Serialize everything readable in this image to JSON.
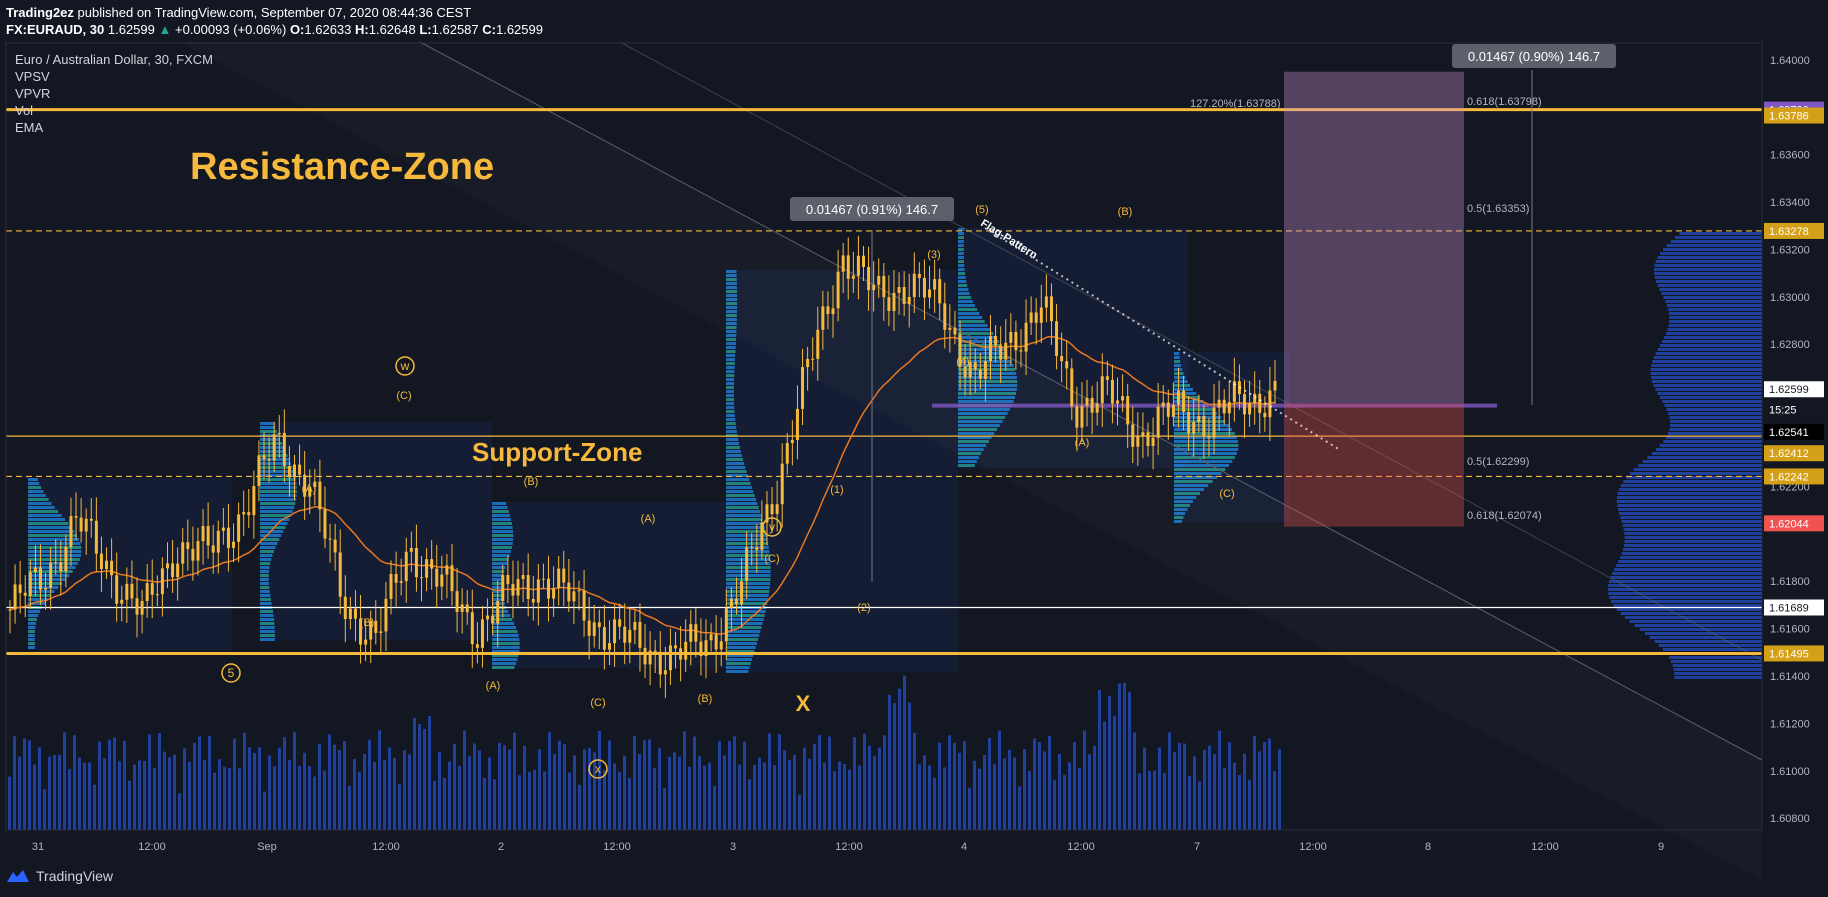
{
  "header": {
    "publisher": "Trading2ez",
    "published_text": "published on TradingView.com, September 07, 2020 08:44:36 CEST",
    "symbol": "FX:EURAUD, 30",
    "last": "1.62599",
    "change": "+0.00093 (+0.06%)",
    "open_label": "O:",
    "open": "1.62633",
    "high_label": "H:",
    "high": "1.62648",
    "low_label": "L:",
    "low": "1.62587",
    "close_label": "C:",
    "close": "1.62599"
  },
  "legend": {
    "title": "Euro / Australian Dollar, 30, FXCM",
    "indicators": [
      "VPSV",
      "VPVR",
      "Vol",
      "EMA"
    ]
  },
  "annotations": {
    "resistance_zone": "Resistance-Zone",
    "support_zone": "Support-Zone",
    "flag_pattern": "Flag-Pattern",
    "measure_left": "0.01467 (0.91%) 146.7",
    "measure_right": "0.01467 (0.90%) 146.7",
    "fib_127": "127.20%(1.63788)",
    "fib_0618_top": "0.618(1.63798)",
    "fib_05_top": "0.5(1.63353)",
    "fib_05_bot": "0.5(1.62299)",
    "fib_0618_bot": "0.618(1.62074)",
    "wave_labels": {
      "w": "w",
      "y": "y",
      "x_circle": "x",
      "x_big": "X",
      "five_circle": "5",
      "A": "(A)",
      "B": "(B)",
      "C": "(C)",
      "w1": "(1)",
      "w2": "(2)",
      "w3": "(3)",
      "w4": "(4)",
      "w5": "(5)"
    },
    "colors": {
      "wave_label": "#f6b93b",
      "zone_line": "#f6b93b",
      "candle": "#f6b93b",
      "ema": "#e87722",
      "volume": "#2962ff"
    }
  },
  "price_axis": {
    "ticks": [
      "1.64000",
      "1.63600",
      "1.63400",
      "1.63200",
      "1.63000",
      "1.62800",
      "1.62200",
      "1.61800",
      "1.61600",
      "1.61400",
      "1.61200",
      "1.61000",
      "1.60800"
    ],
    "badges": [
      {
        "label": "1.63790",
        "color": "#7e57c2"
      },
      {
        "label": "1.63786",
        "color": "#d4a017"
      },
      {
        "label": "1.63278",
        "color": "#d4a017"
      },
      {
        "label": "1.62599",
        "color": "#ffffff"
      },
      {
        "label": "15:25",
        "color": "#131722"
      },
      {
        "label": "1.62541",
        "color": "#000000"
      },
      {
        "label": "1.62412",
        "color": "#d4a017"
      },
      {
        "label": "1.62242",
        "color": "#d4a017"
      },
      {
        "label": "1.62044",
        "color": "#ef5350"
      },
      {
        "label": "1.61689",
        "color": "#ffffff"
      },
      {
        "label": "1.61495",
        "color": "#d4a017"
      }
    ]
  },
  "time_axis": {
    "ticks": [
      "31",
      "12:00",
      "Sep",
      "12:00",
      "2",
      "12:00",
      "3",
      "12:00",
      "4",
      "12:00",
      "7",
      "12:00",
      "8",
      "12:00",
      "9"
    ]
  },
  "footer": {
    "brand": "TradingView"
  },
  "chart_data": {
    "type": "candlestick",
    "symbol": "FX:EURAUD",
    "timeframe": "30",
    "ylim": [
      1.608,
      1.641
    ],
    "x_ticks": [
      "31",
      "12:00",
      "Sep",
      "12:00",
      "2",
      "12:00",
      "3",
      "12:00",
      "4",
      "12:00",
      "7",
      "12:00",
      "8",
      "12:00",
      "9"
    ],
    "levels": {
      "resistance_top": 1.6379,
      "resistance_dashed": 1.63278,
      "support_top": 1.62412,
      "support_dashed": 1.62242,
      "white_line": 1.61689,
      "bottom_zone": 1.61495,
      "poc_line": 1.62541
    },
    "close_path_anchors": [
      1.6168,
      1.6182,
      1.6205,
      1.6185,
      1.6165,
      1.6195,
      1.6192,
      1.621,
      1.6238,
      1.6222,
      1.6172,
      1.6155,
      1.6195,
      1.6178,
      1.616,
      1.6175,
      1.6182,
      1.617,
      1.6158,
      1.6152,
      1.6148,
      1.6155,
      1.6178,
      1.622,
      1.627,
      1.6318,
      1.63,
      1.6306,
      1.6295,
      1.6265,
      1.6282,
      1.6295,
      1.6255,
      1.6258,
      1.6242,
      1.6252,
      1.6248,
      1.6256,
      1.626
    ],
    "last": 1.62599
  }
}
